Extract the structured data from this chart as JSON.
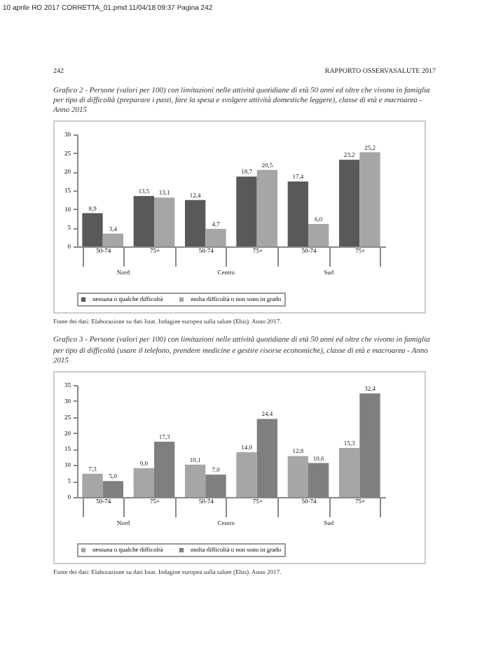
{
  "chart_data": [
    {
      "type": "bar",
      "title": "Grafico 2 - Persone (valori per 100) con limitazioni nelle attività quotidiane di età 50 anni ed oltre che vivono in famiglia per tipo di difficoltà (preparare i pasti, fare la spesa e svolgere attività domestiche leggere), classe di età e macroarea - Anno 2015",
      "categories": [
        "50-74",
        "75+",
        "50-74",
        "75+",
        "50-74",
        "75+"
      ],
      "series": [
        {
          "name": "nessuna o qualche difficoltà",
          "color": "#595959",
          "values": [
            8.9,
            13.5,
            12.4,
            18.7,
            17.4,
            23.2
          ],
          "value_labels": [
            "8,9",
            "13,5",
            "12,4",
            "18,7",
            "17,4",
            "23,2"
          ]
        },
        {
          "name": "molta difficoltà o non sono in grado",
          "color": "#a6a6a6",
          "values": [
            3.4,
            13.1,
            4.7,
            20.5,
            6.0,
            25.2
          ],
          "value_labels": [
            "3,4",
            "13,1",
            "4,7",
            "20,5",
            "6,0",
            "25,2"
          ]
        }
      ],
      "ylim": [
        0,
        30
      ],
      "yticks": [
        0,
        5,
        10,
        15,
        20,
        25,
        30
      ],
      "legend": "bottom",
      "annotations": [
        "10 aprile RO 2017 CORRETTA_01.pmd 11/04/18 09:37 Pagina 242",
        "242",
        "RAPPORTO OSSERVASALUTE 2017",
        "Nord",
        "Centro",
        "Sud",
        "Fonte dei dati: Elaborazione su dati Istat. Indagine europea sulla salute (Ehis). Anno 2017."
      ]
    },
    {
      "type": "bar",
      "title": "Grafico 3 - Persone (valori per 100) con limitazioni nelle attività quotidiane di età 50 anni ed oltre che vivono in famiglia per tipo di difficoltà (usare il telefono, prendere medicine e gestire risorse economiche), classe di età e macroarea - Anno 2015",
      "categories": [
        "50-74",
        "75+",
        "50-74",
        "75+",
        "50-74",
        "75+"
      ],
      "series": [
        {
          "name": "nessuna o qualche difficoltà",
          "color": "#a6a6a6",
          "values": [
            7.3,
            9.0,
            10.1,
            14.0,
            12.8,
            15.3
          ],
          "value_labels": [
            "7,3",
            "9,0",
            "10,1",
            "14,0",
            "12,8",
            "15,3"
          ]
        },
        {
          "name": "molta difficoltà o non sono in grado",
          "color": "#7f7f7f",
          "values": [
            5.0,
            17.3,
            7.0,
            24.4,
            10.6,
            32.4
          ],
          "value_labels": [
            "5,0",
            "17,3",
            "7,0",
            "24,4",
            "10,6",
            "32,4"
          ]
        }
      ],
      "ylim": [
        0,
        35
      ],
      "yticks": [
        0,
        5,
        10,
        15,
        20,
        25,
        30,
        35
      ],
      "legend": "bottom",
      "annotations": [
        "Nord",
        "Centro",
        "Sud",
        "Fonte dei dati: Elaborazione su dati Istat. Indagine europea sulla salute (Ehis). Anno 2017."
      ]
    }
  ]
}
